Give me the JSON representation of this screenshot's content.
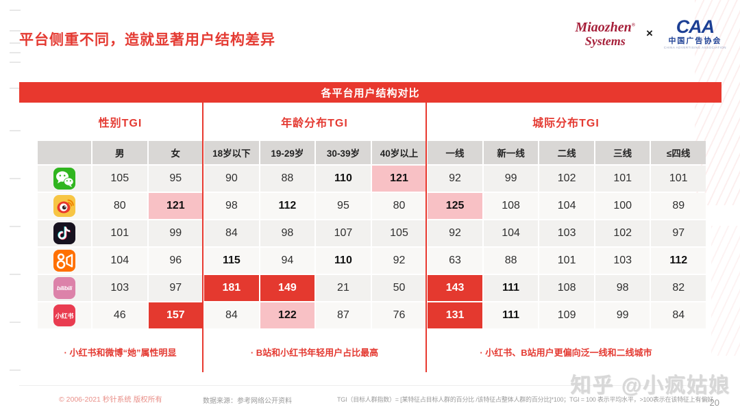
{
  "page": {
    "title": "平台侧重不同，造就显著用户结构差异",
    "page_number": "20",
    "watermark": "知乎 @小疯姑娘"
  },
  "logos": {
    "miaozhen_line1": "Miaozhen",
    "miaozhen_reg": "®",
    "miaozhen_line2": "Systems",
    "separator": "×",
    "caa_acronym": "CAA",
    "caa_name": "中国广告协会",
    "caa_subtitle": "CHINA ADVERTISING ASSOCIATION"
  },
  "banner": {
    "label": "各平台用户结构对比"
  },
  "table": {
    "groups": [
      {
        "label": "性别TGI",
        "columns": [
          "男",
          "女"
        ]
      },
      {
        "label": "年龄分布TGI",
        "columns": [
          "18岁以下",
          "19-29岁",
          "30-39岁",
          "40岁以上"
        ]
      },
      {
        "label": "城际分布TGI",
        "columns": [
          "一线",
          "新一线",
          "二线",
          "三线",
          "≤四线"
        ]
      }
    ],
    "rows": [
      {
        "platform": "wechat",
        "icon": "wechat-icon",
        "cells": [
          {
            "v": "105",
            "s": "n"
          },
          {
            "v": "95",
            "s": "n"
          },
          {
            "v": "90",
            "s": "n"
          },
          {
            "v": "88",
            "s": "n"
          },
          {
            "v": "110",
            "s": "b"
          },
          {
            "v": "121",
            "s": "p"
          },
          {
            "v": "92",
            "s": "n"
          },
          {
            "v": "99",
            "s": "n"
          },
          {
            "v": "102",
            "s": "n"
          },
          {
            "v": "101",
            "s": "n"
          },
          {
            "v": "101",
            "s": "n"
          }
        ]
      },
      {
        "platform": "weibo",
        "icon": "weibo-icon",
        "cells": [
          {
            "v": "80",
            "s": "n"
          },
          {
            "v": "121",
            "s": "p"
          },
          {
            "v": "98",
            "s": "n"
          },
          {
            "v": "112",
            "s": "b"
          },
          {
            "v": "95",
            "s": "n"
          },
          {
            "v": "80",
            "s": "n"
          },
          {
            "v": "125",
            "s": "p"
          },
          {
            "v": "108",
            "s": "n"
          },
          {
            "v": "104",
            "s": "n"
          },
          {
            "v": "100",
            "s": "n"
          },
          {
            "v": "89",
            "s": "n"
          }
        ]
      },
      {
        "platform": "douyin",
        "icon": "douyin-icon",
        "cells": [
          {
            "v": "101",
            "s": "n"
          },
          {
            "v": "99",
            "s": "n"
          },
          {
            "v": "84",
            "s": "n"
          },
          {
            "v": "98",
            "s": "n"
          },
          {
            "v": "107",
            "s": "n"
          },
          {
            "v": "105",
            "s": "n"
          },
          {
            "v": "92",
            "s": "n"
          },
          {
            "v": "104",
            "s": "n"
          },
          {
            "v": "103",
            "s": "n"
          },
          {
            "v": "102",
            "s": "n"
          },
          {
            "v": "97",
            "s": "n"
          }
        ]
      },
      {
        "platform": "kuaishou",
        "icon": "kuaishou-icon",
        "cells": [
          {
            "v": "104",
            "s": "n"
          },
          {
            "v": "96",
            "s": "n"
          },
          {
            "v": "115",
            "s": "b"
          },
          {
            "v": "94",
            "s": "n"
          },
          {
            "v": "110",
            "s": "b"
          },
          {
            "v": "92",
            "s": "n"
          },
          {
            "v": "63",
            "s": "n"
          },
          {
            "v": "88",
            "s": "n"
          },
          {
            "v": "101",
            "s": "n"
          },
          {
            "v": "103",
            "s": "n"
          },
          {
            "v": "112",
            "s": "b"
          }
        ]
      },
      {
        "platform": "bilibili",
        "icon": "bilibili-icon",
        "icon_text": "bilibili",
        "cells": [
          {
            "v": "103",
            "s": "n"
          },
          {
            "v": "97",
            "s": "n"
          },
          {
            "v": "181",
            "s": "r"
          },
          {
            "v": "149",
            "s": "r"
          },
          {
            "v": "21",
            "s": "n"
          },
          {
            "v": "50",
            "s": "n"
          },
          {
            "v": "143",
            "s": "r"
          },
          {
            "v": "111",
            "s": "b"
          },
          {
            "v": "108",
            "s": "n"
          },
          {
            "v": "98",
            "s": "n"
          },
          {
            "v": "82",
            "s": "n"
          }
        ]
      },
      {
        "platform": "xiaohongshu",
        "icon": "xiaohongshu-icon",
        "icon_text": "小红书",
        "cells": [
          {
            "v": "46",
            "s": "n"
          },
          {
            "v": "157",
            "s": "r"
          },
          {
            "v": "84",
            "s": "n"
          },
          {
            "v": "122",
            "s": "p"
          },
          {
            "v": "87",
            "s": "n"
          },
          {
            "v": "76",
            "s": "n"
          },
          {
            "v": "131",
            "s": "r"
          },
          {
            "v": "111",
            "s": "b"
          },
          {
            "v": "109",
            "s": "n"
          },
          {
            "v": "99",
            "s": "n"
          },
          {
            "v": "84",
            "s": "n"
          }
        ]
      }
    ],
    "notes": [
      "·  小红书和微博“她”属性明显",
      "·  B站和小红书年轻用户占比最高",
      "·  小红书、B站用户更偏向泛一线和二线城市"
    ]
  },
  "footer": {
    "copyright": "© 2006-2021 秒针系统 版权所有",
    "source": "数据来源：参考网络公开资料",
    "tgi_definition": "TGI（目标人群指数）= [某特征占目标人群的百分比 /该特征占整体人群的百分比]*100；TGI = 100 表示平均水平，>100表示在该特征上有偏好"
  },
  "colors": {
    "accent_red": "#e8382e",
    "pink_highlight": "#f8c1c5",
    "header_grey": "#d9d7d5",
    "caa_blue": "#1c3f94",
    "miaozhen_red": "#a6203a"
  }
}
